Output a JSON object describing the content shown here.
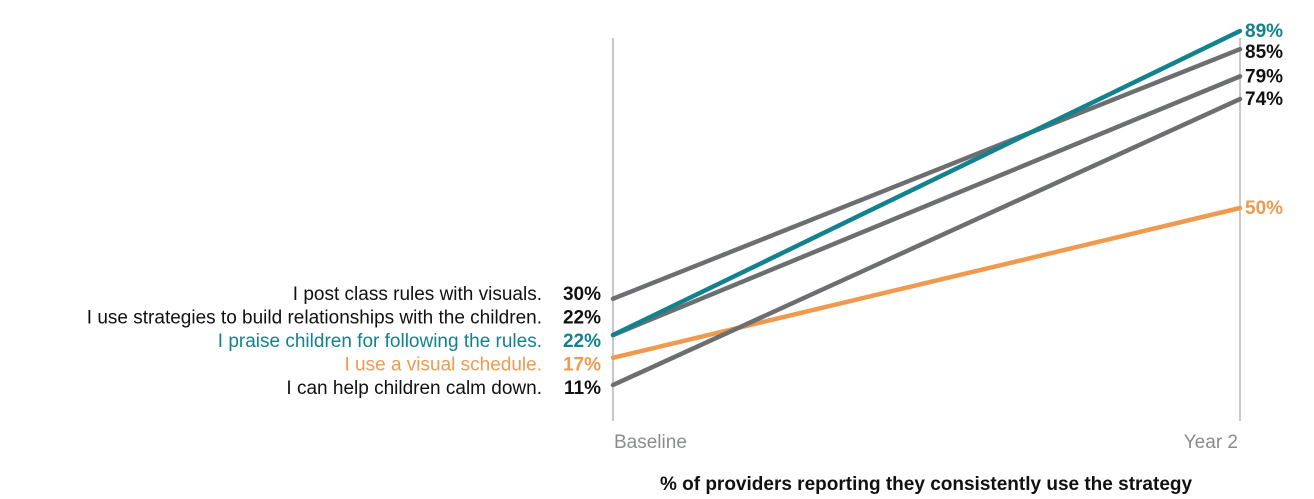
{
  "chart_data": {
    "type": "line",
    "x": [
      "Baseline",
      "Year 2"
    ],
    "xlabel": "% of providers reporting they consistently use the strategy",
    "ylabel": "",
    "ylim": [
      0,
      100
    ],
    "grid": false,
    "series": [
      {
        "name": "I post class rules with visuals.",
        "values": [
          30,
          85
        ],
        "value_labels": [
          "30%",
          "85%"
        ],
        "line_color": "#6d6e71",
        "label_color": "#111111",
        "value_color": "#111111"
      },
      {
        "name": "I use strategies to build relationships with the children.",
        "values": [
          22,
          79
        ],
        "value_labels": [
          "22%",
          "79%"
        ],
        "line_color": "#6d6e71",
        "label_color": "#111111",
        "value_color": "#111111"
      },
      {
        "name": "I praise children for following the rules.",
        "values": [
          22,
          89
        ],
        "value_labels": [
          "22%",
          "89%"
        ],
        "line_color": "#12828f",
        "label_color": "#12828f",
        "value_color": "#12828f"
      },
      {
        "name": "I use a visual schedule.",
        "values": [
          17,
          50
        ],
        "value_labels": [
          "17%",
          "50%"
        ],
        "line_color": "#ef9a4f",
        "label_color": "#ef9a4f",
        "value_color": "#ef9a4f"
      },
      {
        "name": "I can help children calm down.",
        "values": [
          11,
          74
        ],
        "value_labels": [
          "11%",
          "74%"
        ],
        "line_color": "#6d6e71",
        "label_color": "#111111",
        "value_color": "#111111"
      }
    ]
  }
}
